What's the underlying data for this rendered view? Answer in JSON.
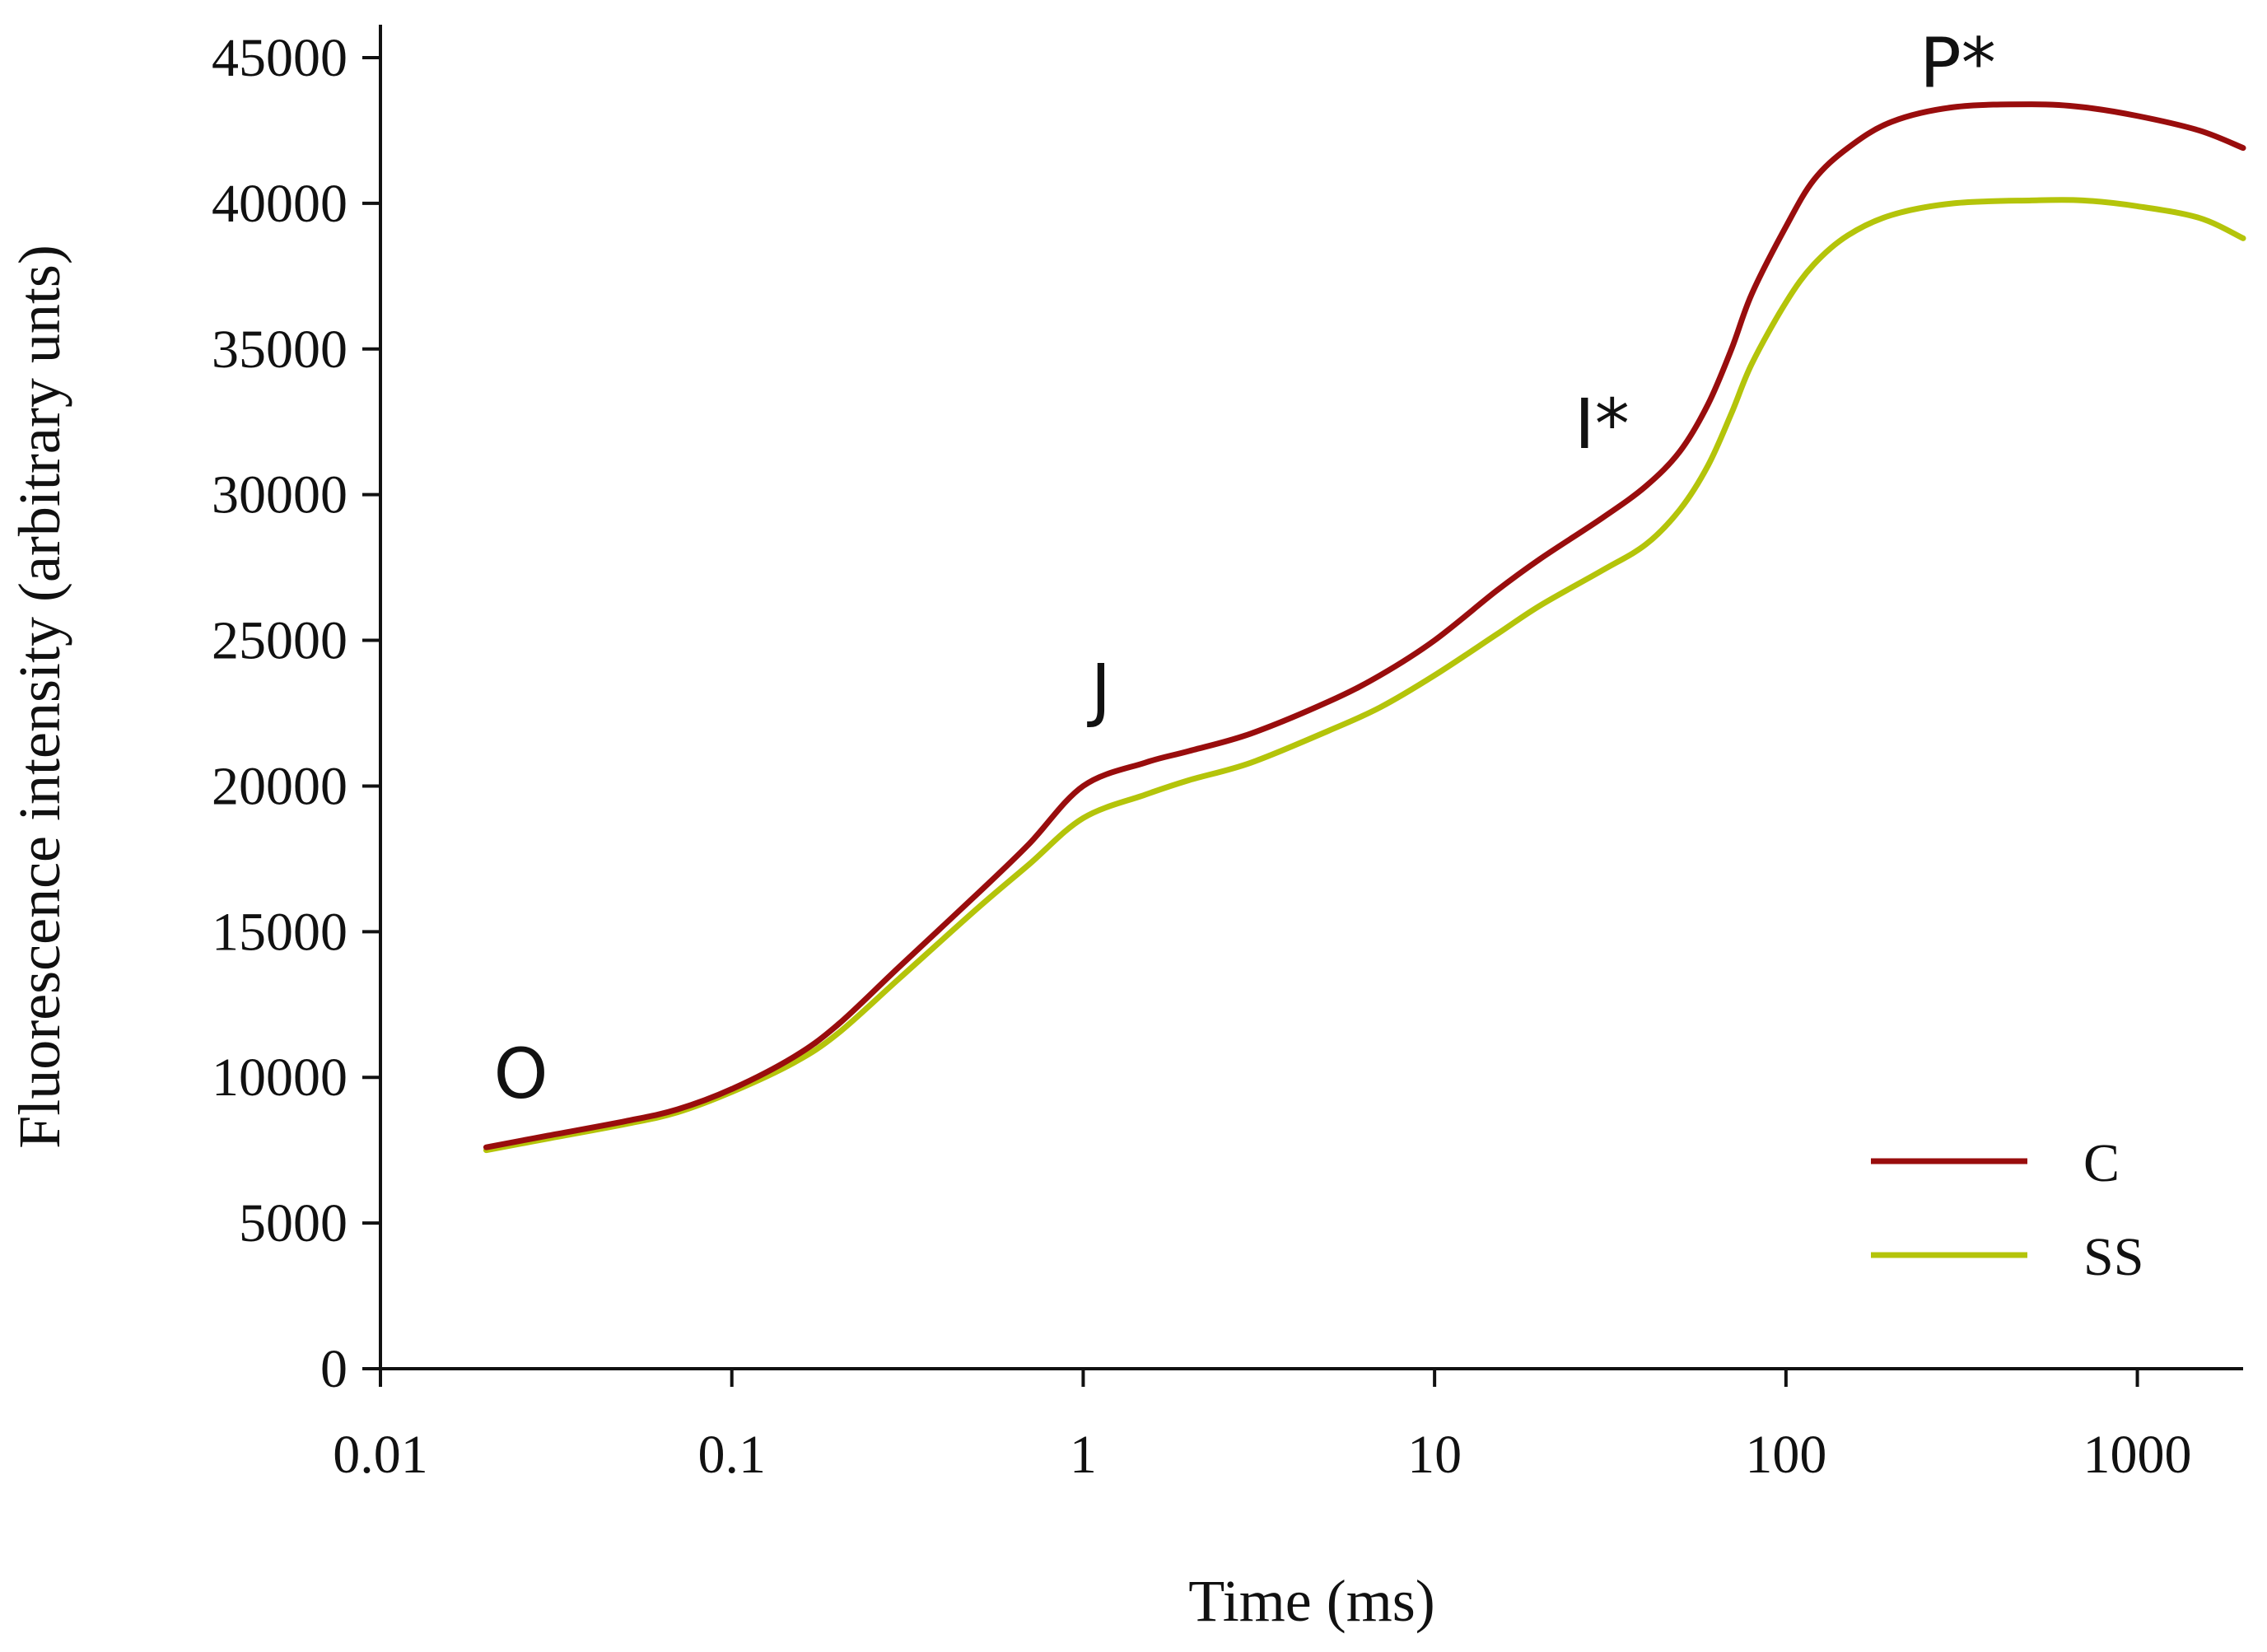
{
  "chart_data": {
    "type": "line",
    "title": "",
    "xlabel": "Time (ms)",
    "ylabel": "Fluorescence intensity (arbitrary unts)",
    "xscale": "log",
    "xlim": [
      0.01,
      2000
    ],
    "ylim": [
      0,
      45000
    ],
    "xticks": [
      0.01,
      0.1,
      1,
      10,
      100,
      1000
    ],
    "xtick_labels": [
      "0.01",
      "0.1",
      "1",
      "10",
      "100",
      "1000"
    ],
    "yticks": [
      0,
      5000,
      10000,
      15000,
      20000,
      25000,
      30000,
      35000,
      40000,
      45000
    ],
    "ytick_labels": [
      "0",
      "5000",
      "10000",
      "15000",
      "20000",
      "25000",
      "30000",
      "35000",
      "40000",
      "45000"
    ],
    "grid": false,
    "legend_position": "bottom-right",
    "x": [
      0.02,
      0.03,
      0.05,
      0.07,
      0.1,
      0.15,
      0.2,
      0.3,
      0.5,
      0.7,
      1,
      1.5,
      2,
      3,
      5,
      7,
      10,
      15,
      20,
      30,
      40,
      50,
      60,
      70,
      80,
      100,
      120,
      150,
      200,
      300,
      500,
      700,
      1000,
      1500,
      2000
    ],
    "series": [
      {
        "name": "C",
        "color": "#990d0d",
        "values": [
          7600,
          8000,
          8500,
          8900,
          9600,
          10700,
          11800,
          13800,
          16300,
          18000,
          20000,
          20800,
          21200,
          21800,
          22900,
          23800,
          25000,
          26700,
          27800,
          29200,
          30300,
          31500,
          33100,
          35000,
          36900,
          39200,
          40800,
          41900,
          42800,
          43300,
          43400,
          43300,
          43000,
          42500,
          41900
        ]
      },
      {
        "name": "SS",
        "color": "#b4c40a",
        "values": [
          7500,
          7900,
          8400,
          8800,
          9500,
          10500,
          11500,
          13400,
          15800,
          17300,
          18900,
          19700,
          20200,
          20800,
          21900,
          22700,
          23800,
          25200,
          26200,
          27400,
          28300,
          29500,
          31000,
          32800,
          34500,
          36600,
          37900,
          38900,
          39600,
          40000,
          40100,
          40100,
          39900,
          39500,
          38800
        ]
      }
    ],
    "annotations": [
      {
        "text": "O",
        "x": 0.021,
        "y": 9300
      },
      {
        "text": "J",
        "x": 1.05,
        "y": 22500
      },
      {
        "text": "I*",
        "x": 25,
        "y": 31600
      },
      {
        "text": "P*",
        "x": 240,
        "y": 44000
      }
    ]
  }
}
